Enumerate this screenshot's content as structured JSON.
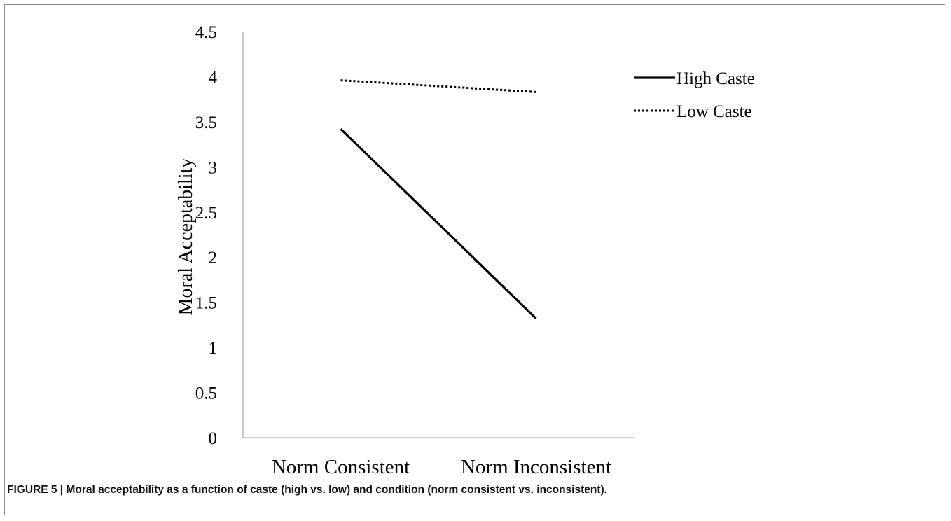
{
  "chart_data": {
    "type": "line",
    "categories": [
      "Norm Consistent",
      "Norm Inconsistent"
    ],
    "series": [
      {
        "name": "High Caste",
        "values": [
          3.42,
          1.32
        ],
        "style": "solid",
        "color": "#000000"
      },
      {
        "name": "Low Caste",
        "values": [
          3.96,
          3.83
        ],
        "style": "dotted",
        "color": "#000000"
      }
    ],
    "ylabel": "Moral Acceptability",
    "xlabel": "",
    "ylim": [
      0,
      4.5
    ],
    "yticks": [
      "0",
      "0.5",
      "1",
      "1.5",
      "2",
      "2.5",
      "3",
      "3.5",
      "4",
      "4.5"
    ],
    "grid": false,
    "legend_position": "top-right"
  },
  "caption": {
    "label": "FIGURE 5 |",
    "text": "Moral acceptability as a function of caste (high vs. low) and condition (norm consistent vs. inconsistent)."
  }
}
